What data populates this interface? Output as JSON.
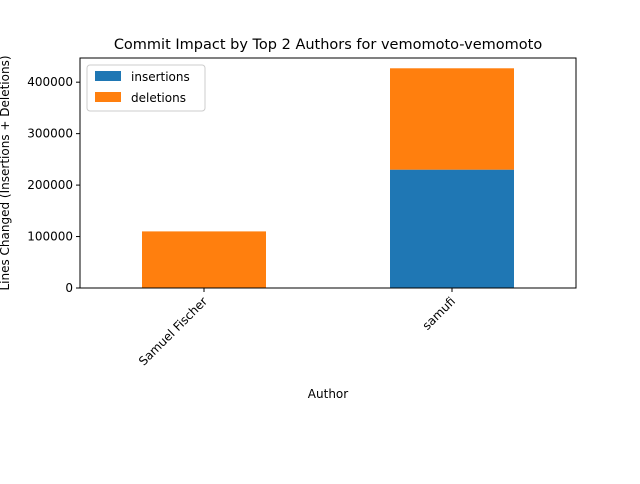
{
  "chart_data": {
    "type": "bar",
    "stacked": true,
    "title": "Commit Impact by Top 2 Authors for vemomoto-vemomoto",
    "xlabel": "Author",
    "ylabel": "Lines Changed (Insertions + Deletions)",
    "categories": [
      "Samuel Fischer",
      "samufi"
    ],
    "series": [
      {
        "name": "insertions",
        "color": "#1f77b4",
        "values": [
          0,
          230000
        ]
      },
      {
        "name": "deletions",
        "color": "#ff7f0e",
        "values": [
          110000,
          197000
        ]
      }
    ],
    "ylim": [
      0,
      447000
    ],
    "yticks": [
      0,
      100000,
      200000,
      300000,
      400000
    ],
    "legend_position": "top-left",
    "grid": false
  }
}
